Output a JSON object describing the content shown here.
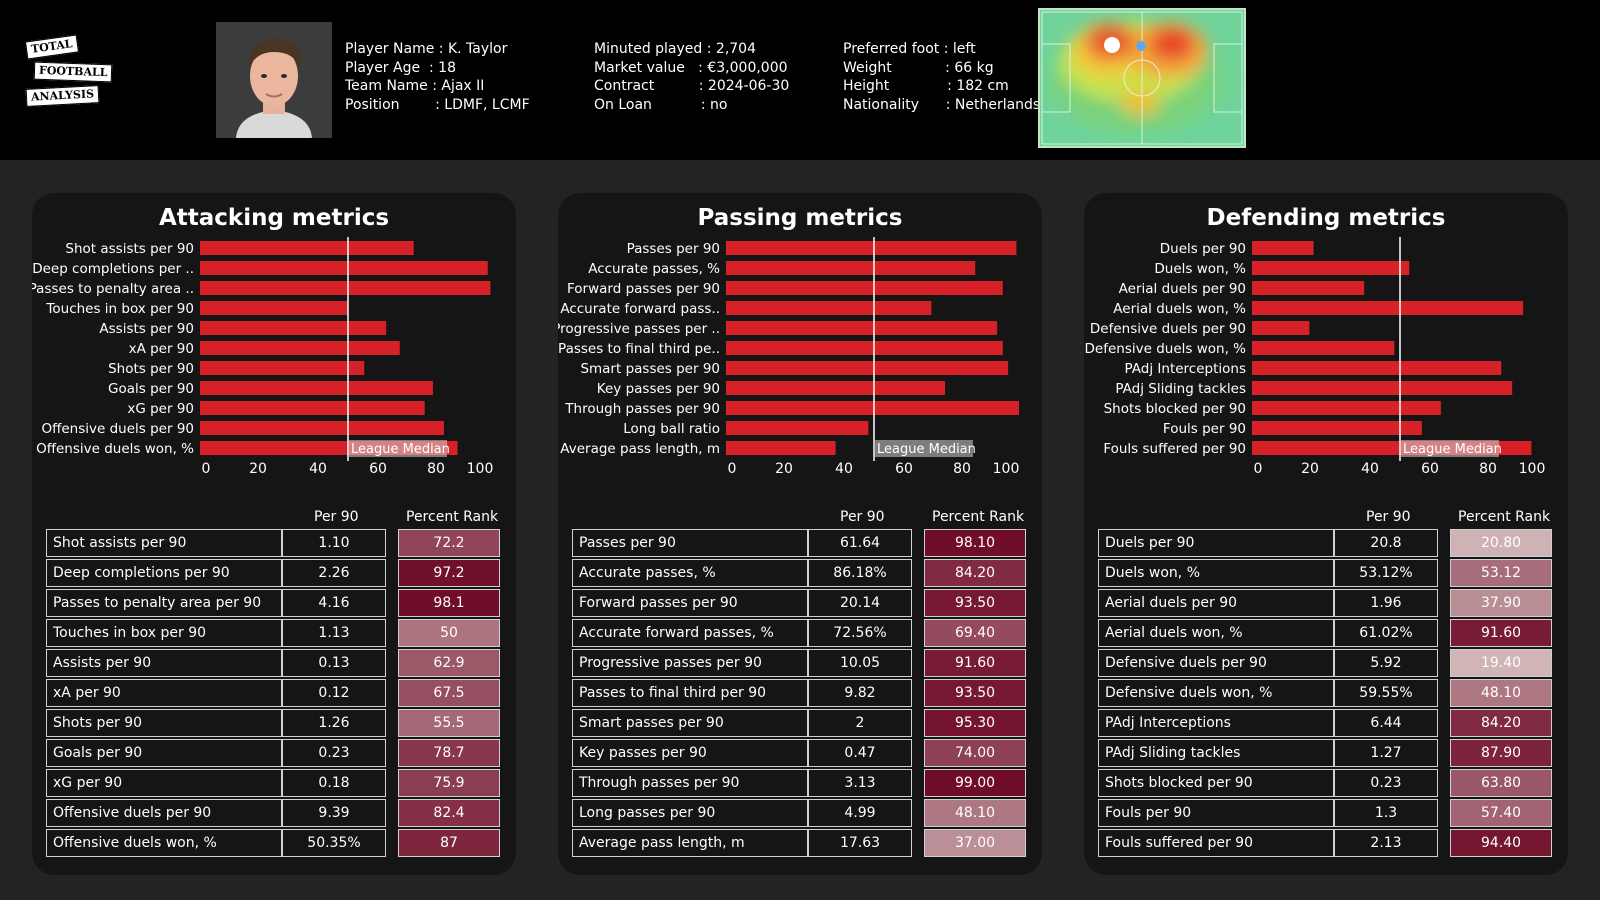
{
  "logo": {
    "line1": "TOTAL",
    "line2": "FOOTBALL",
    "line3": "ANALYSIS"
  },
  "player": {
    "col1": [
      {
        "label": "Player Name",
        "sep": " : ",
        "value": "K. Taylor"
      },
      {
        "label": "Player Age",
        "sep": "  : ",
        "value": "18"
      },
      {
        "label": "Team Name",
        "sep": " : ",
        "value": "Ajax II"
      },
      {
        "label": "Position",
        "sep": "        : ",
        "value": "LDMF, LCMF"
      }
    ],
    "col2": [
      {
        "label": "Minuted played",
        "sep": " : ",
        "value": "2,704"
      },
      {
        "label": "Market value",
        "sep": "   : ",
        "value": "€3,000,000"
      },
      {
        "label": "Contract",
        "sep": "          : ",
        "value": "2024-06-30"
      },
      {
        "label": "On Loan",
        "sep": "           : ",
        "value": "no"
      }
    ],
    "col3": [
      {
        "label": "Preferred foot",
        "sep": " : ",
        "value": "left"
      },
      {
        "label": "Weight",
        "sep": "            : ",
        "value": "66 kg"
      },
      {
        "label": "Height",
        "sep": "             : ",
        "value": "182 cm"
      },
      {
        "label": "Nationality",
        "sep": "      : ",
        "value": "Netherlands"
      }
    ]
  },
  "colors": {
    "bar": "#d62128",
    "median_line": "#ffffff",
    "median_label_bg": "#d3d3d3",
    "rank_low": [
      214,
      190,
      190
    ],
    "rank_high": [
      110,
      10,
      38
    ]
  },
  "table_headers": {
    "per90": "Per 90",
    "rank": "Percent Rank"
  },
  "chart_data": [
    {
      "type": "bar",
      "orientation": "horizontal",
      "title": "Attacking metrics",
      "categories": [
        "Shot assists per 90",
        "Deep completions per ..",
        "Passes to penalty area ..",
        "Touches in box per 90",
        "Assists per 90",
        "xA per 90",
        "Shots per 90",
        "Goals per 90",
        "xG per 90",
        "Offensive duels per 90",
        "Offensive duels won, %"
      ],
      "values": [
        72.2,
        97.2,
        98.1,
        50,
        62.9,
        67.5,
        55.5,
        78.7,
        75.9,
        82.4,
        87
      ],
      "xlim": [
        0,
        100
      ],
      "xticks": [
        "0",
        "20",
        "40",
        "60",
        "80",
        "100"
      ],
      "median": 50,
      "median_label": "League Median",
      "table": [
        {
          "name": "Shot assists per 90",
          "per90": "1.10",
          "rank": "72.2"
        },
        {
          "name": "Deep completions per 90",
          "per90": "2.26",
          "rank": "97.2"
        },
        {
          "name": "Passes to penalty area per 90",
          "per90": "4.16",
          "rank": "98.1"
        },
        {
          "name": "Touches in box per 90",
          "per90": "1.13",
          "rank": "50"
        },
        {
          "name": "Assists per 90",
          "per90": "0.13",
          "rank": "62.9"
        },
        {
          "name": "xA per 90",
          "per90": "0.12",
          "rank": "67.5"
        },
        {
          "name": "Shots per 90",
          "per90": "1.26",
          "rank": "55.5"
        },
        {
          "name": "Goals per 90",
          "per90": "0.23",
          "rank": "78.7"
        },
        {
          "name": "xG per 90",
          "per90": "0.18",
          "rank": "75.9"
        },
        {
          "name": "Offensive duels per 90",
          "per90": "9.39",
          "rank": "82.4"
        },
        {
          "name": "Offensive duels won, %",
          "per90": "50.35%",
          "rank": "87"
        }
      ]
    },
    {
      "type": "bar",
      "orientation": "horizontal",
      "title": "Passing metrics",
      "categories": [
        "Passes per 90",
        "Accurate passes, %",
        "Forward passes per 90",
        "Accurate forward pass..",
        "Progressive passes per ..",
        "Passes to final third pe..",
        "Smart passes per 90",
        "Key passes per 90",
        "Through passes per 90",
        "Long ball ratio",
        "Average pass length, m"
      ],
      "values": [
        98.1,
        84.2,
        93.5,
        69.4,
        91.6,
        93.5,
        95.3,
        74.0,
        99.0,
        48.1,
        37.0
      ],
      "xlim": [
        0,
        100
      ],
      "xticks": [
        "0",
        "20",
        "40",
        "60",
        "80",
        "100"
      ],
      "median": 50,
      "median_label": "League Median",
      "table": [
        {
          "name": "Passes per 90",
          "per90": "61.64",
          "rank": "98.10"
        },
        {
          "name": "Accurate passes, %",
          "per90": "86.18%",
          "rank": "84.20"
        },
        {
          "name": "Forward passes per 90",
          "per90": "20.14",
          "rank": "93.50"
        },
        {
          "name": "Accurate forward passes, %",
          "per90": "72.56%",
          "rank": "69.40"
        },
        {
          "name": "Progressive passes per 90",
          "per90": "10.05",
          "rank": "91.60"
        },
        {
          "name": "Passes to final third per 90",
          "per90": "9.82",
          "rank": "93.50"
        },
        {
          "name": "Smart passes per 90",
          "per90": "2",
          "rank": "95.30"
        },
        {
          "name": "Key passes per 90",
          "per90": "0.47",
          "rank": "74.00"
        },
        {
          "name": "Through passes per 90",
          "per90": "3.13",
          "rank": "99.00"
        },
        {
          "name": "Long passes per 90",
          "per90": "4.99",
          "rank": "48.10"
        },
        {
          "name": "Average pass length, m",
          "per90": "17.63",
          "rank": "37.00"
        }
      ]
    },
    {
      "type": "bar",
      "orientation": "horizontal",
      "title": "Defending metrics",
      "categories": [
        "Duels per 90",
        "Duels won, %",
        "Aerial duels per 90",
        "Aerial duels won, %",
        "Defensive duels per 90",
        "Defensive duels won, %",
        "PAdj Interceptions",
        "PAdj Sliding tackles",
        "Shots blocked per 90",
        "Fouls per 90",
        "Fouls suffered per 90"
      ],
      "values": [
        20.8,
        53.12,
        37.9,
        91.6,
        19.4,
        48.1,
        84.2,
        87.9,
        63.8,
        57.4,
        94.4
      ],
      "xlim": [
        0,
        100
      ],
      "xticks": [
        "0",
        "20",
        "40",
        "60",
        "80",
        "100"
      ],
      "median": 50,
      "median_label": "League Median",
      "table": [
        {
          "name": "Duels per 90",
          "per90": "20.8",
          "rank": "20.80"
        },
        {
          "name": "Duels won, %",
          "per90": "53.12%",
          "rank": "53.12"
        },
        {
          "name": "Aerial duels per 90",
          "per90": "1.96",
          "rank": "37.90"
        },
        {
          "name": "Aerial duels won, %",
          "per90": "61.02%",
          "rank": "91.60"
        },
        {
          "name": "Defensive duels per 90",
          "per90": "5.92",
          "rank": "19.40"
        },
        {
          "name": "Defensive duels won, %",
          "per90": "59.55%",
          "rank": "48.10"
        },
        {
          "name": "PAdj Interceptions",
          "per90": "6.44",
          "rank": "84.20"
        },
        {
          "name": "PAdj Sliding tackles",
          "per90": "1.27",
          "rank": "87.90"
        },
        {
          "name": "Shots blocked per 90",
          "per90": "0.23",
          "rank": "63.80"
        },
        {
          "name": "Fouls per 90",
          "per90": "1.3",
          "rank": "57.40"
        },
        {
          "name": "Fouls suffered per 90",
          "per90": "2.13",
          "rank": "94.40"
        }
      ]
    }
  ]
}
